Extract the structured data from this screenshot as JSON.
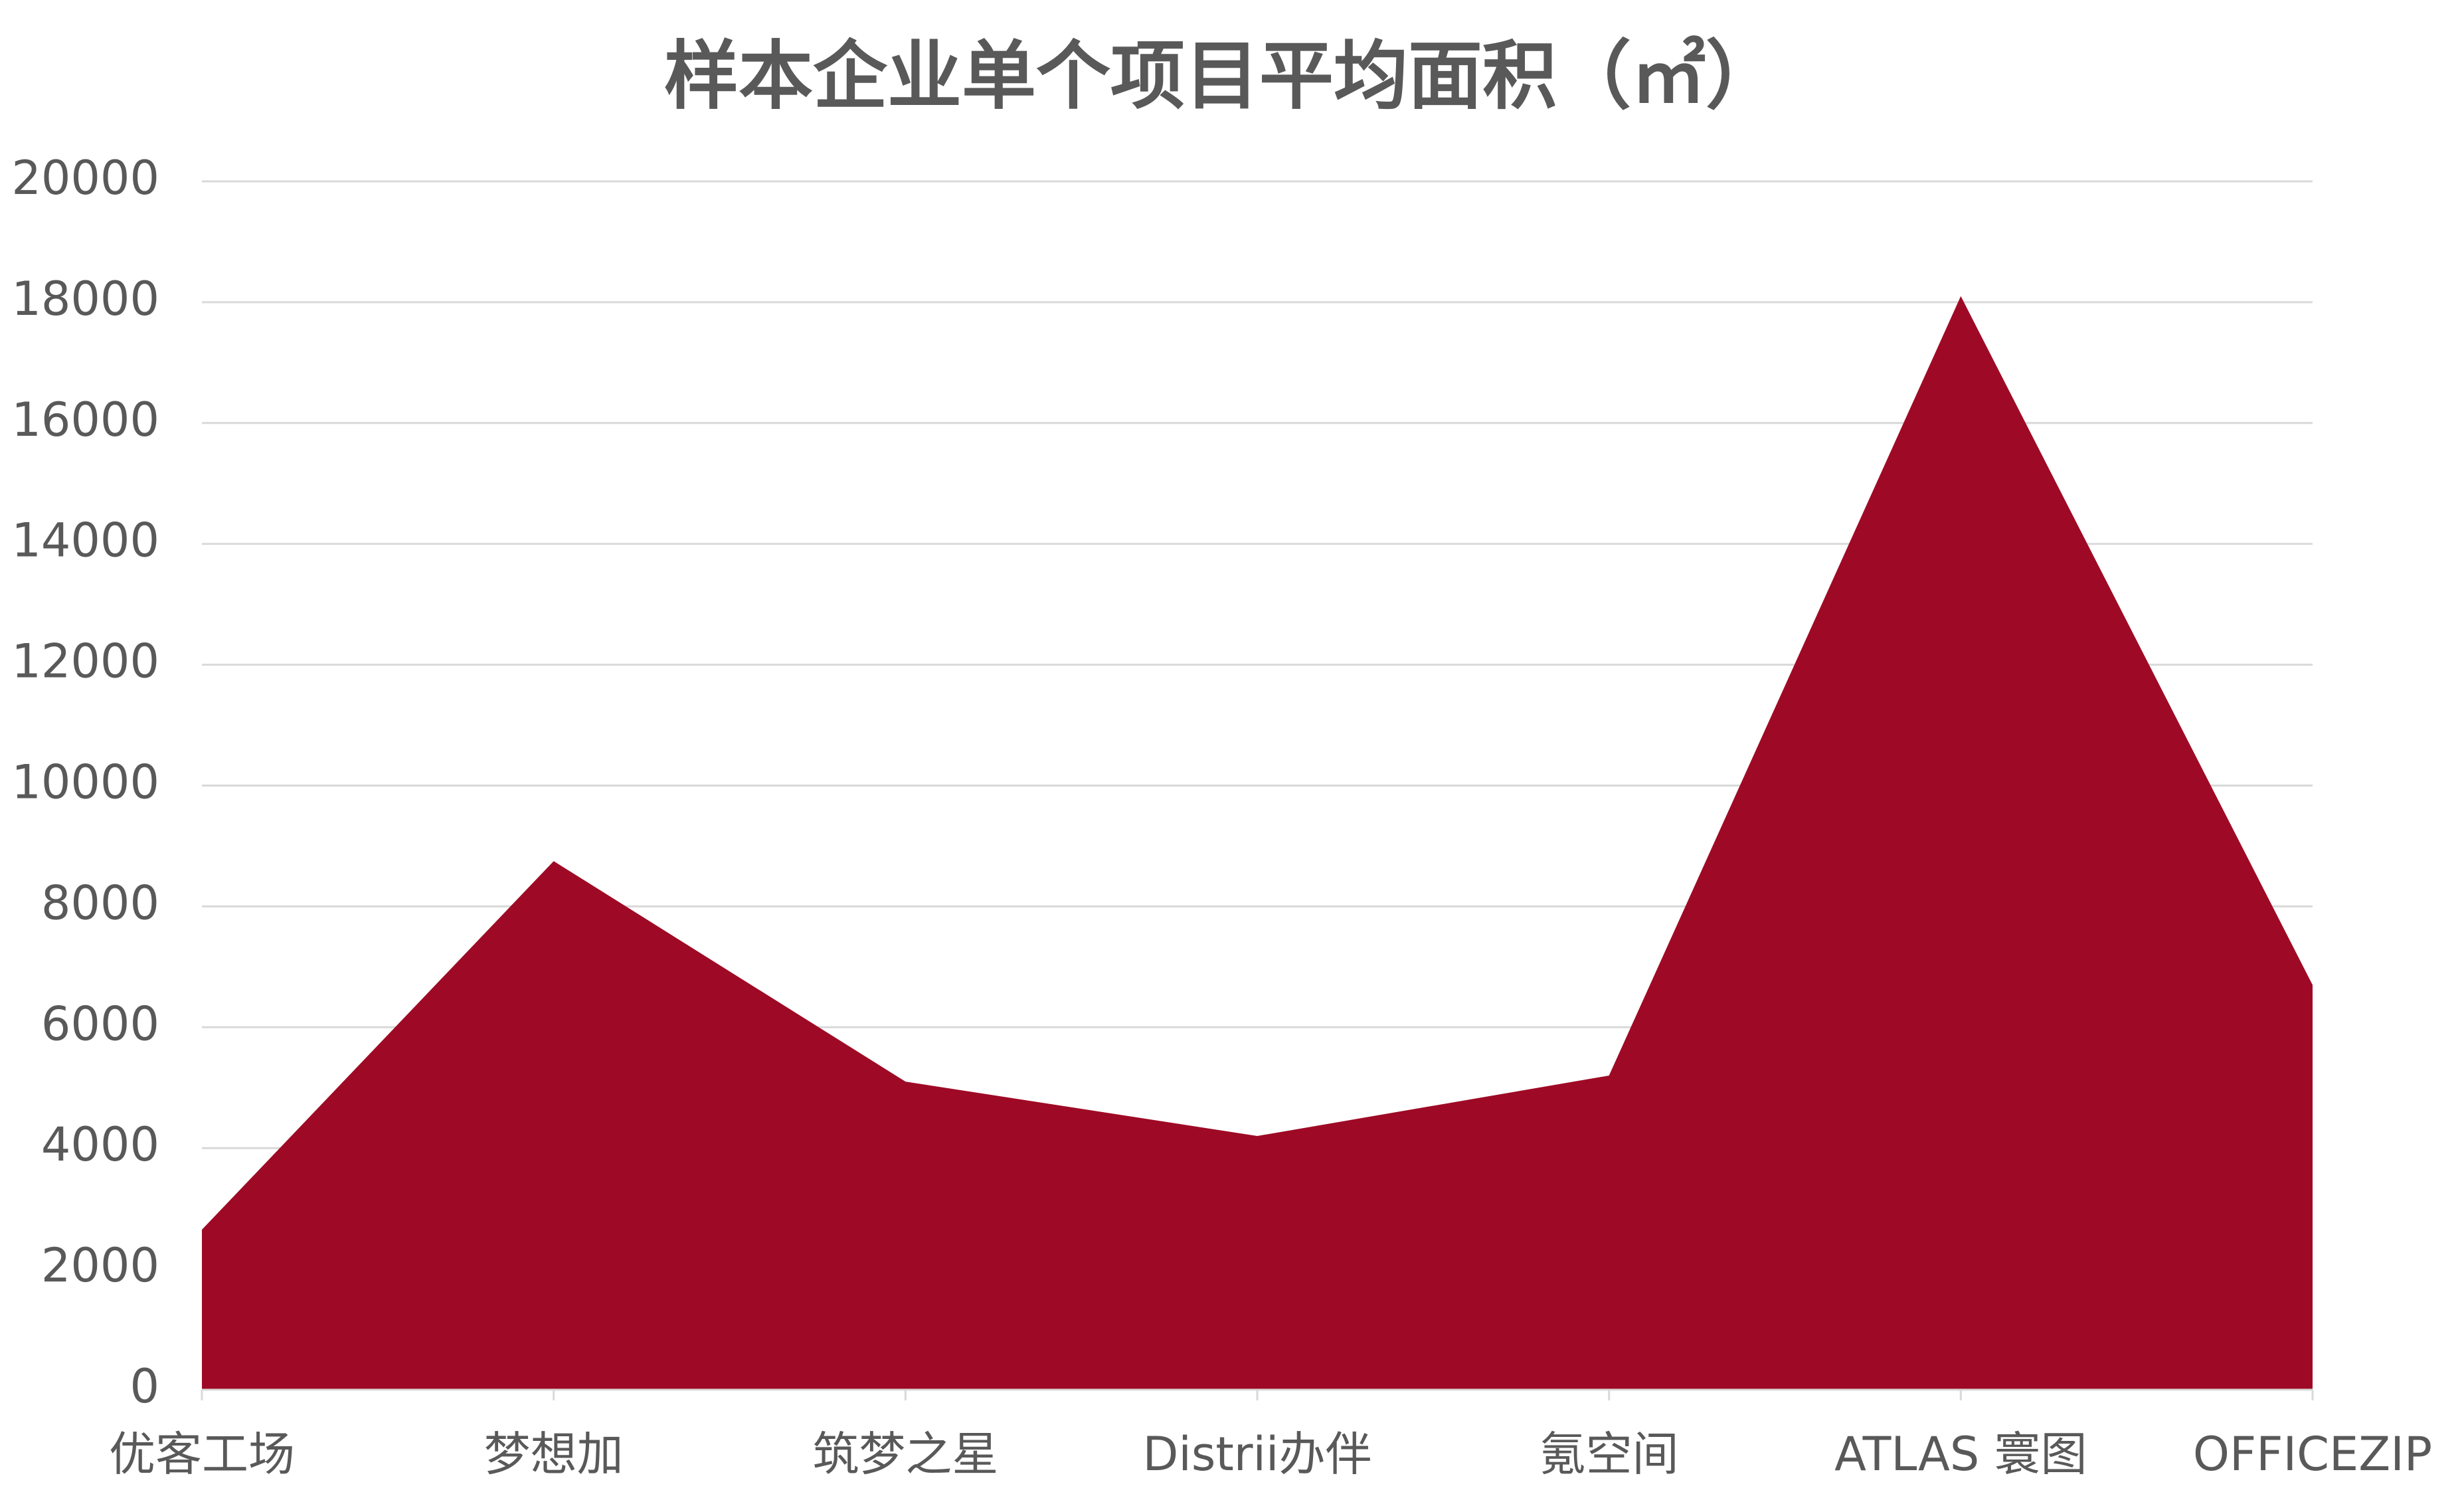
{
  "chart_data": {
    "type": "area",
    "title": "样本企业单个项目平均面积（㎡）",
    "categories": [
      "优客工场",
      "梦想加",
      "筑梦之星",
      "Distrii办伴",
      "氪空间",
      "ATLAS 寰图",
      "OFFICEZIP"
    ],
    "values": [
      2650,
      8750,
      5100,
      4200,
      5200,
      18100,
      6700
    ],
    "color": "#9e0a25",
    "ylim": [
      0,
      20000
    ],
    "yticks": [
      0,
      2000,
      4000,
      6000,
      8000,
      10000,
      12000,
      14000,
      16000,
      18000,
      20000
    ],
    "grid": true
  }
}
